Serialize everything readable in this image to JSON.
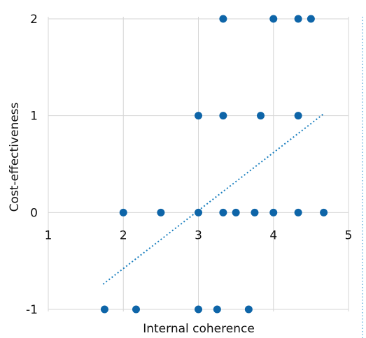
{
  "chart_data": {
    "type": "scatter",
    "title": "",
    "xlabel": "Internal coherence",
    "ylabel": "Cost-effectiveness",
    "xlim": [
      1,
      5
    ],
    "ylim": [
      -1,
      2
    ],
    "xticks": [
      "1",
      "2",
      "3",
      "4",
      "5"
    ],
    "yticks": [
      "-1",
      "0",
      "1",
      "2"
    ],
    "grid": true,
    "points": [
      {
        "x": 3.33,
        "y": 2
      },
      {
        "x": 4.0,
        "y": 2
      },
      {
        "x": 4.33,
        "y": 2
      },
      {
        "x": 4.5,
        "y": 2
      },
      {
        "x": 3.0,
        "y": 1
      },
      {
        "x": 3.33,
        "y": 1
      },
      {
        "x": 3.83,
        "y": 1
      },
      {
        "x": 4.33,
        "y": 1
      },
      {
        "x": 2.0,
        "y": 0
      },
      {
        "x": 2.5,
        "y": 0
      },
      {
        "x": 3.0,
        "y": 0
      },
      {
        "x": 3.33,
        "y": 0
      },
      {
        "x": 3.5,
        "y": 0
      },
      {
        "x": 3.75,
        "y": 0
      },
      {
        "x": 4.0,
        "y": 0
      },
      {
        "x": 4.33,
        "y": 0
      },
      {
        "x": 4.67,
        "y": 0
      },
      {
        "x": 1.75,
        "y": -1
      },
      {
        "x": 2.17,
        "y": -1
      },
      {
        "x": 3.0,
        "y": -1
      },
      {
        "x": 3.25,
        "y": -1
      },
      {
        "x": 3.67,
        "y": -1
      }
    ],
    "trendline": {
      "style": "dotted",
      "x": [
        1.73,
        4.67
      ],
      "y": [
        -0.74,
        1.02
      ]
    },
    "colors": {
      "points": "#0e65a8",
      "trendline": "#1a7fbf",
      "grid": "#d6d6d6"
    }
  }
}
